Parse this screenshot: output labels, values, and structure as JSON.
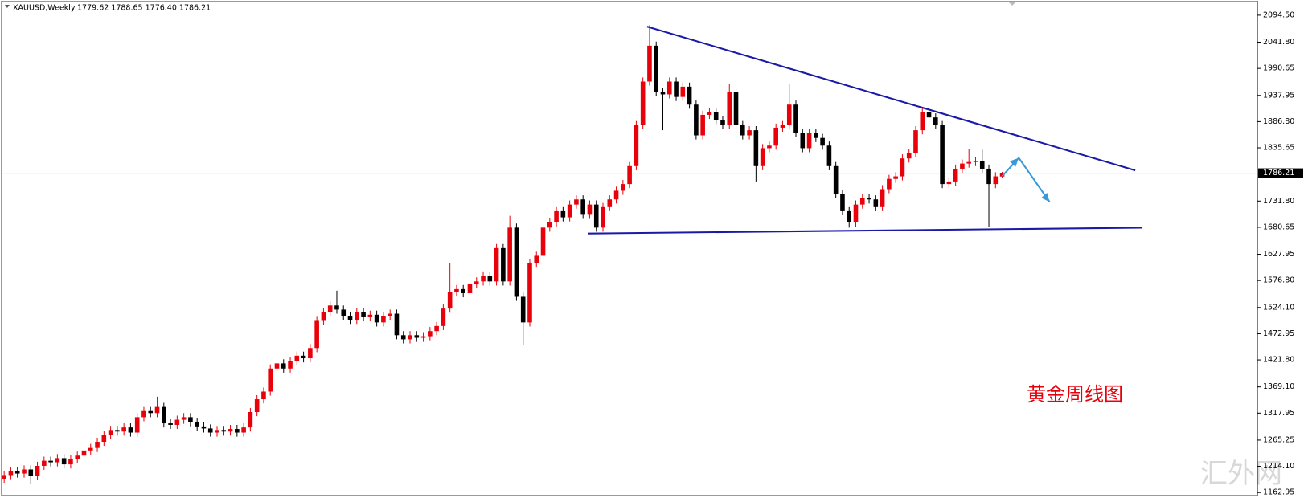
{
  "chart_data": {
    "type": "candlestick",
    "title": "XAUUSD,Weekly",
    "ohlc_label": "1779.62 1788.65 1776.40 1786.21",
    "open": [
      1190,
      1197,
      1205,
      1200,
      1208,
      1195,
      1215,
      1225,
      1222,
      1230,
      1218,
      1228,
      1235,
      1245,
      1250,
      1262,
      1275,
      1285,
      1282,
      1290,
      1280,
      1310,
      1322,
      1318,
      1330,
      1298,
      1295,
      1305,
      1310,
      1300,
      1292,
      1288,
      1280,
      1285,
      1282,
      1287,
      1280,
      1290,
      1320,
      1345,
      1360,
      1405,
      1415,
      1405,
      1420,
      1430,
      1425,
      1445,
      1498,
      1515,
      1528,
      1520,
      1508,
      1500,
      1515,
      1505,
      1510,
      1495,
      1508,
      1512,
      1470,
      1462,
      1470,
      1465,
      1468,
      1478,
      1488,
      1522,
      1555,
      1560,
      1552,
      1570,
      1575,
      1585,
      1575,
      1640,
      1575,
      1680,
      1545,
      1495,
      1610,
      1625,
      1680,
      1690,
      1712,
      1700,
      1725,
      1735,
      1705,
      1725,
      1680,
      1720,
      1735,
      1752,
      1765,
      1800,
      1880,
      1965,
      2035,
      1945,
      1940,
      1965,
      1935,
      1955,
      1920,
      1860,
      1900,
      1905,
      1890,
      1880,
      1945,
      1880,
      1860,
      1870,
      1800,
      1835,
      1840,
      1875,
      1880,
      1920,
      1865,
      1835,
      1865,
      1855,
      1840,
      1800,
      1745,
      1712,
      1690,
      1725,
      1738,
      1735,
      1720,
      1755,
      1775,
      1780,
      1815,
      1825,
      1870,
      1905,
      1895,
      1880,
      1765,
      1770,
      1795,
      1805,
      1808,
      1810,
      1795,
      1765,
      1779.62
    ],
    "high": [
      1205,
      1213,
      1213,
      1216,
      1216,
      1223,
      1233,
      1233,
      1238,
      1238,
      1236,
      1243,
      1253,
      1258,
      1270,
      1283,
      1293,
      1293,
      1298,
      1298,
      1318,
      1330,
      1330,
      1350,
      1338,
      1306,
      1313,
      1318,
      1318,
      1308,
      1300,
      1296,
      1293,
      1293,
      1295,
      1295,
      1298,
      1328,
      1353,
      1368,
      1413,
      1423,
      1423,
      1428,
      1438,
      1438,
      1453,
      1506,
      1523,
      1536,
      1557,
      1528,
      1516,
      1523,
      1523,
      1518,
      1518,
      1516,
      1520,
      1520,
      1478,
      1478,
      1478,
      1476,
      1486,
      1496,
      1530,
      1610,
      1568,
      1568,
      1578,
      1583,
      1593,
      1593,
      1648,
      1648,
      1703,
      1688,
      1553,
      1618,
      1633,
      1688,
      1698,
      1720,
      1720,
      1733,
      1743,
      1743,
      1733,
      1733,
      1728,
      1743,
      1760,
      1773,
      1808,
      1888,
      1973,
      2075,
      2043,
      1953,
      1973,
      1973,
      1963,
      1963,
      1928,
      1908,
      1913,
      1913,
      1898,
      1960,
      1953,
      1888,
      1878,
      1878,
      1843,
      1848,
      1883,
      1888,
      1960,
      1928,
      1873,
      1873,
      1873,
      1863,
      1848,
      1808,
      1753,
      1720,
      1733,
      1746,
      1746,
      1743,
      1763,
      1783,
      1788,
      1823,
      1833,
      1878,
      1913,
      1913,
      1903,
      1888,
      1778,
      1803,
      1813,
      1834,
      1818,
      1832,
      1803,
      1788,
      1788.65
    ],
    "low": [
      1182,
      1189,
      1192,
      1192,
      1180,
      1187,
      1207,
      1214,
      1214,
      1210,
      1210,
      1220,
      1227,
      1237,
      1242,
      1254,
      1267,
      1274,
      1274,
      1272,
      1272,
      1302,
      1310,
      1310,
      1290,
      1287,
      1287,
      1297,
      1292,
      1284,
      1280,
      1272,
      1272,
      1274,
      1274,
      1272,
      1272,
      1282,
      1312,
      1337,
      1352,
      1397,
      1397,
      1397,
      1412,
      1417,
      1417,
      1437,
      1490,
      1507,
      1512,
      1500,
      1492,
      1492,
      1497,
      1497,
      1487,
      1487,
      1500,
      1462,
      1454,
      1454,
      1457,
      1457,
      1460,
      1470,
      1480,
      1514,
      1547,
      1544,
      1544,
      1562,
      1567,
      1567,
      1567,
      1567,
      1567,
      1537,
      1451,
      1487,
      1602,
      1617,
      1672,
      1682,
      1692,
      1692,
      1717,
      1697,
      1697,
      1672,
      1672,
      1712,
      1727,
      1744,
      1757,
      1792,
      1872,
      1957,
      1937,
      1870,
      1932,
      1927,
      1927,
      1912,
      1852,
      1852,
      1892,
      1882,
      1872,
      1872,
      1872,
      1852,
      1852,
      1770,
      1792,
      1827,
      1832,
      1867,
      1872,
      1857,
      1827,
      1827,
      1847,
      1832,
      1792,
      1737,
      1704,
      1680,
      1682,
      1717,
      1727,
      1712,
      1712,
      1747,
      1767,
      1772,
      1807,
      1817,
      1862,
      1887,
      1872,
      1757,
      1757,
      1762,
      1787,
      1797,
      1800,
      1787,
      1682,
      1757,
      1776.4
    ],
    "close": [
      1197,
      1205,
      1200,
      1208,
      1195,
      1215,
      1225,
      1222,
      1230,
      1218,
      1228,
      1235,
      1245,
      1250,
      1262,
      1275,
      1285,
      1282,
      1290,
      1280,
      1310,
      1322,
      1318,
      1330,
      1298,
      1295,
      1305,
      1310,
      1300,
      1292,
      1288,
      1280,
      1285,
      1282,
      1287,
      1280,
      1290,
      1320,
      1345,
      1360,
      1405,
      1415,
      1405,
      1420,
      1430,
      1425,
      1445,
      1498,
      1515,
      1528,
      1520,
      1508,
      1500,
      1515,
      1505,
      1510,
      1495,
      1508,
      1512,
      1470,
      1462,
      1470,
      1465,
      1468,
      1478,
      1488,
      1522,
      1555,
      1560,
      1552,
      1570,
      1575,
      1585,
      1575,
      1640,
      1575,
      1680,
      1545,
      1495,
      1610,
      1625,
      1680,
      1690,
      1712,
      1700,
      1725,
      1735,
      1705,
      1725,
      1680,
      1720,
      1735,
      1752,
      1765,
      1800,
      1880,
      1965,
      2035,
      1945,
      1940,
      1965,
      1935,
      1955,
      1920,
      1860,
      1900,
      1905,
      1890,
      1880,
      1945,
      1880,
      1860,
      1870,
      1800,
      1835,
      1840,
      1875,
      1880,
      1920,
      1865,
      1835,
      1865,
      1855,
      1840,
      1800,
      1745,
      1712,
      1690,
      1725,
      1738,
      1735,
      1720,
      1755,
      1775,
      1780,
      1815,
      1825,
      1870,
      1905,
      1895,
      1880,
      1765,
      1770,
      1795,
      1805,
      1808,
      1810,
      1795,
      1765,
      1780,
      1786.21
    ],
    "up_color": "#e8000b",
    "down_color": "#000000",
    "ylim": [
      1157,
      2110
    ],
    "yticks": [
      {
        "value": 2094.5,
        "label": "2094.50"
      },
      {
        "value": 2041.8,
        "label": "2041.80"
      },
      1990.65,
      1937.95,
      {
        "value": 1886.8,
        "label": "1886.80"
      },
      1835.65,
      {
        "value": 1731.8,
        "label": "1731.80"
      },
      1680.65,
      1627.95,
      {
        "value": 1576.8,
        "label": "1576.80"
      },
      {
        "value": 1524.1,
        "label": "1524.10"
      },
      1472.95,
      {
        "value": 1421.8,
        "label": "1421.80"
      },
      {
        "value": 1369.1,
        "label": "1369.10"
      },
      1317.95,
      1265.25,
      {
        "value": 1214.1,
        "label": "1214.10"
      },
      1162.95
    ],
    "current_price": 1786.21,
    "annotation": "黄金周线图",
    "annotation_color": "#e8000b",
    "watermark": "汇外网"
  }
}
